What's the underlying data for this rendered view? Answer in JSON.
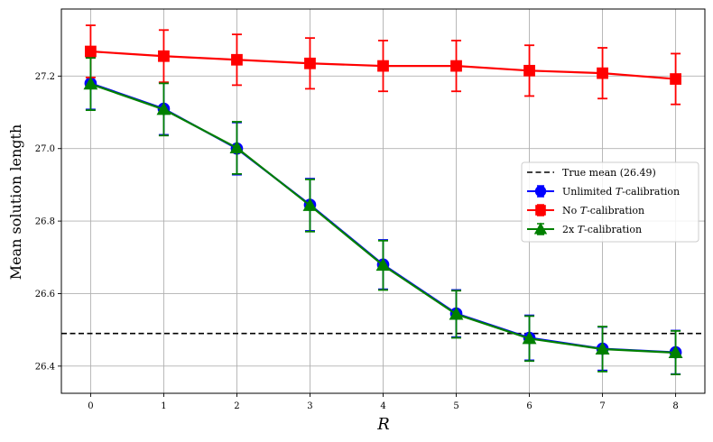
{
  "chart_data": {
    "type": "line",
    "xlabel": "R",
    "ylabel": "Mean solution length",
    "x": [
      0,
      1,
      2,
      3,
      4,
      5,
      6,
      7,
      8
    ],
    "xlim": [
      -0.4,
      8.4
    ],
    "ylim": [
      26.325,
      27.385
    ],
    "x_ticks": [
      "0",
      "1",
      "2",
      "3",
      "4",
      "5",
      "6",
      "7",
      "8"
    ],
    "y_ticks": [
      "26.4",
      "26.6",
      "26.8",
      "27.0",
      "27.2"
    ],
    "grid": true,
    "legend_position": "center-right",
    "reference_line": {
      "label": "True mean (26.49)",
      "value": 26.49,
      "color": "#000000",
      "style": "dashed"
    },
    "series": [
      {
        "name_prefix": "Unlimited ",
        "name_math": "T",
        "name_suffix": "-calibration",
        "color": "#0000ff",
        "marker": "circle",
        "values": [
          27.18,
          27.11,
          27.0,
          26.845,
          26.68,
          26.545,
          26.478,
          26.448,
          26.438
        ],
        "errors": [
          0.072,
          0.072,
          0.072,
          0.072,
          0.068,
          0.065,
          0.062,
          0.06,
          0.06
        ]
      },
      {
        "name_prefix": "No ",
        "name_math": "T",
        "name_suffix": "-calibration",
        "color": "#ff0000",
        "marker": "square",
        "values": [
          27.268,
          27.255,
          27.245,
          27.235,
          27.228,
          27.228,
          27.215,
          27.208,
          27.192
        ],
        "errors": [
          0.072,
          0.072,
          0.07,
          0.07,
          0.07,
          0.07,
          0.07,
          0.07,
          0.07
        ]
      },
      {
        "name_prefix": "2x ",
        "name_math": "T",
        "name_suffix": "-calibration",
        "color": "#008000",
        "marker": "triangle",
        "values": [
          27.178,
          27.108,
          27.002,
          26.843,
          26.678,
          26.543,
          26.476,
          26.447,
          26.437
        ],
        "errors": [
          0.072,
          0.072,
          0.072,
          0.072,
          0.068,
          0.065,
          0.062,
          0.062,
          0.06
        ]
      }
    ]
  }
}
